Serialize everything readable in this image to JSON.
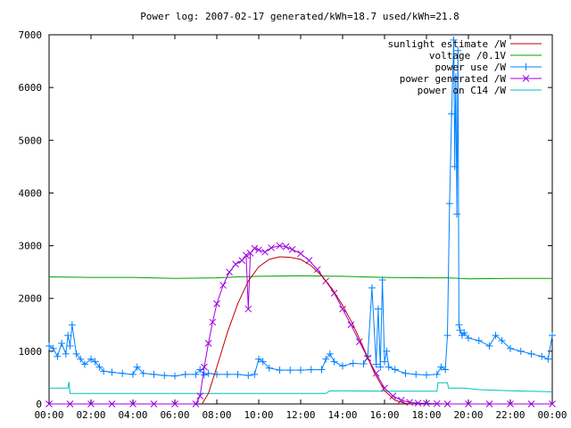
{
  "chart_data": {
    "type": "line",
    "title": "Power log: 2007-02-17 generated/kWh=18.7 used/kWh=21.8",
    "xlabel": "",
    "ylabel": "",
    "xlim": [
      0,
      24
    ],
    "ylim": [
      0,
      7000
    ],
    "x_ticks": [
      {
        "value": 0,
        "label": "00:00"
      },
      {
        "value": 2,
        "label": "02:00"
      },
      {
        "value": 4,
        "label": "04:00"
      },
      {
        "value": 6,
        "label": "06:00"
      },
      {
        "value": 8,
        "label": "08:00"
      },
      {
        "value": 10,
        "label": "10:00"
      },
      {
        "value": 12,
        "label": "12:00"
      },
      {
        "value": 14,
        "label": "14:00"
      },
      {
        "value": 16,
        "label": "16:00"
      },
      {
        "value": 18,
        "label": "18:00"
      },
      {
        "value": 20,
        "label": "20:00"
      },
      {
        "value": 22,
        "label": "22:00"
      },
      {
        "value": 24,
        "label": "00:00"
      }
    ],
    "y_ticks": [
      0,
      1000,
      2000,
      3000,
      4000,
      5000,
      6000,
      7000
    ],
    "grid": false,
    "legend_position": "top-right",
    "series": [
      {
        "name": "sunlight estimate /W",
        "color": "#c00000",
        "marker": "none",
        "x": [
          7.3,
          7.6,
          8.0,
          8.5,
          9.0,
          9.5,
          10.0,
          10.5,
          11.0,
          11.5,
          12.0,
          12.5,
          13.0,
          13.5,
          14.0,
          14.5,
          15.0,
          15.5,
          16.0,
          16.5,
          17.0,
          17.3
        ],
        "y": [
          0,
          200,
          700,
          1350,
          1900,
          2330,
          2600,
          2740,
          2790,
          2780,
          2740,
          2620,
          2430,
          2180,
          1870,
          1500,
          1060,
          600,
          250,
          70,
          10,
          0
        ]
      },
      {
        "name": "voltage /0.1V",
        "color": "#00a000",
        "marker": "none",
        "x": [
          0,
          2,
          4,
          6,
          8,
          9,
          10,
          12,
          14,
          16,
          18,
          19,
          20,
          22,
          24
        ],
        "y": [
          2410,
          2400,
          2400,
          2380,
          2390,
          2410,
          2420,
          2430,
          2420,
          2400,
          2390,
          2390,
          2370,
          2380,
          2380
        ]
      },
      {
        "name": "power use /W",
        "color": "#0080ff",
        "marker": "plus",
        "x": [
          0.0,
          0.2,
          0.4,
          0.6,
          0.8,
          0.9,
          1.0,
          1.1,
          1.3,
          1.5,
          1.7,
          2.0,
          2.2,
          2.4,
          2.6,
          3.0,
          3.5,
          4.0,
          4.2,
          4.5,
          5.0,
          5.5,
          6.0,
          6.5,
          7.0,
          7.2,
          7.4,
          7.6,
          8.0,
          8.5,
          9.0,
          9.5,
          9.8,
          10.0,
          10.2,
          10.5,
          11.0,
          11.5,
          12.0,
          12.5,
          13.0,
          13.2,
          13.4,
          13.6,
          14.0,
          14.5,
          15.0,
          15.2,
          15.4,
          15.6,
          15.7,
          15.8,
          15.9,
          16.0,
          16.1,
          16.2,
          16.5,
          17.0,
          17.5,
          18.0,
          18.5,
          18.7,
          18.9,
          19.0,
          19.1,
          19.2,
          19.3,
          19.35,
          19.4,
          19.45,
          19.5,
          19.55,
          19.6,
          19.7,
          19.8,
          20.0,
          20.5,
          21.0,
          21.3,
          21.6,
          22.0,
          22.5,
          23.0,
          23.5,
          23.8,
          24.0
        ],
        "y": [
          1100,
          1050,
          900,
          1150,
          950,
          1300,
          1100,
          1500,
          950,
          850,
          750,
          850,
          800,
          700,
          620,
          600,
          580,
          560,
          700,
          580,
          560,
          540,
          530,
          560,
          560,
          650,
          550,
          580,
          560,
          560,
          560,
          540,
          560,
          850,
          800,
          680,
          640,
          640,
          640,
          650,
          650,
          850,
          950,
          800,
          720,
          770,
          760,
          900,
          2200,
          750,
          1800,
          700,
          2350,
          800,
          1000,
          700,
          650,
          580,
          560,
          550,
          560,
          700,
          650,
          1300,
          3800,
          5500,
          6900,
          4500,
          6200,
          3600,
          6700,
          1500,
          1400,
          1300,
          1350,
          1250,
          1200,
          1100,
          1300,
          1200,
          1050,
          1000,
          950,
          900,
          850,
          1300
        ]
      },
      {
        "name": "power generated /W",
        "color": "#a000e0",
        "marker": "cross",
        "x": [
          0,
          1,
          2,
          3,
          4,
          5,
          6,
          7.0,
          7.2,
          7.4,
          7.6,
          7.8,
          8.0,
          8.3,
          8.6,
          8.9,
          9.2,
          9.4,
          9.5,
          9.6,
          9.8,
          10.0,
          10.3,
          10.6,
          11.0,
          11.3,
          11.6,
          12.0,
          12.4,
          12.8,
          13.2,
          13.6,
          14.0,
          14.4,
          14.8,
          15.2,
          15.6,
          16.0,
          16.4,
          16.8,
          17.2,
          17.6,
          18.0,
          18.5,
          19,
          20,
          21,
          22,
          23,
          24
        ],
        "y": [
          0,
          0,
          0,
          0,
          0,
          0,
          0,
          0,
          150,
          700,
          1150,
          1550,
          1900,
          2250,
          2500,
          2650,
          2720,
          2820,
          1800,
          2860,
          2950,
          2920,
          2880,
          2960,
          3000,
          2980,
          2930,
          2850,
          2720,
          2550,
          2330,
          2100,
          1800,
          1500,
          1180,
          870,
          580,
          300,
          150,
          70,
          30,
          15,
          10,
          5,
          0,
          0,
          0,
          0,
          0,
          0
        ]
      },
      {
        "name": "power on C14 /W",
        "color": "#00c0c0",
        "marker": "none",
        "x": [
          0,
          0.9,
          0.95,
          1.0,
          1.3,
          2.0,
          4.0,
          6.0,
          8.0,
          10.0,
          12.0,
          13.2,
          13.4,
          16.0,
          18.5,
          18.55,
          19.0,
          19.05,
          19.8,
          20.5,
          22.0,
          24.0
        ],
        "y": [
          300,
          300,
          420,
          200,
          200,
          200,
          200,
          200,
          200,
          200,
          200,
          200,
          250,
          240,
          240,
          400,
          400,
          300,
          300,
          270,
          250,
          230
        ]
      }
    ]
  }
}
